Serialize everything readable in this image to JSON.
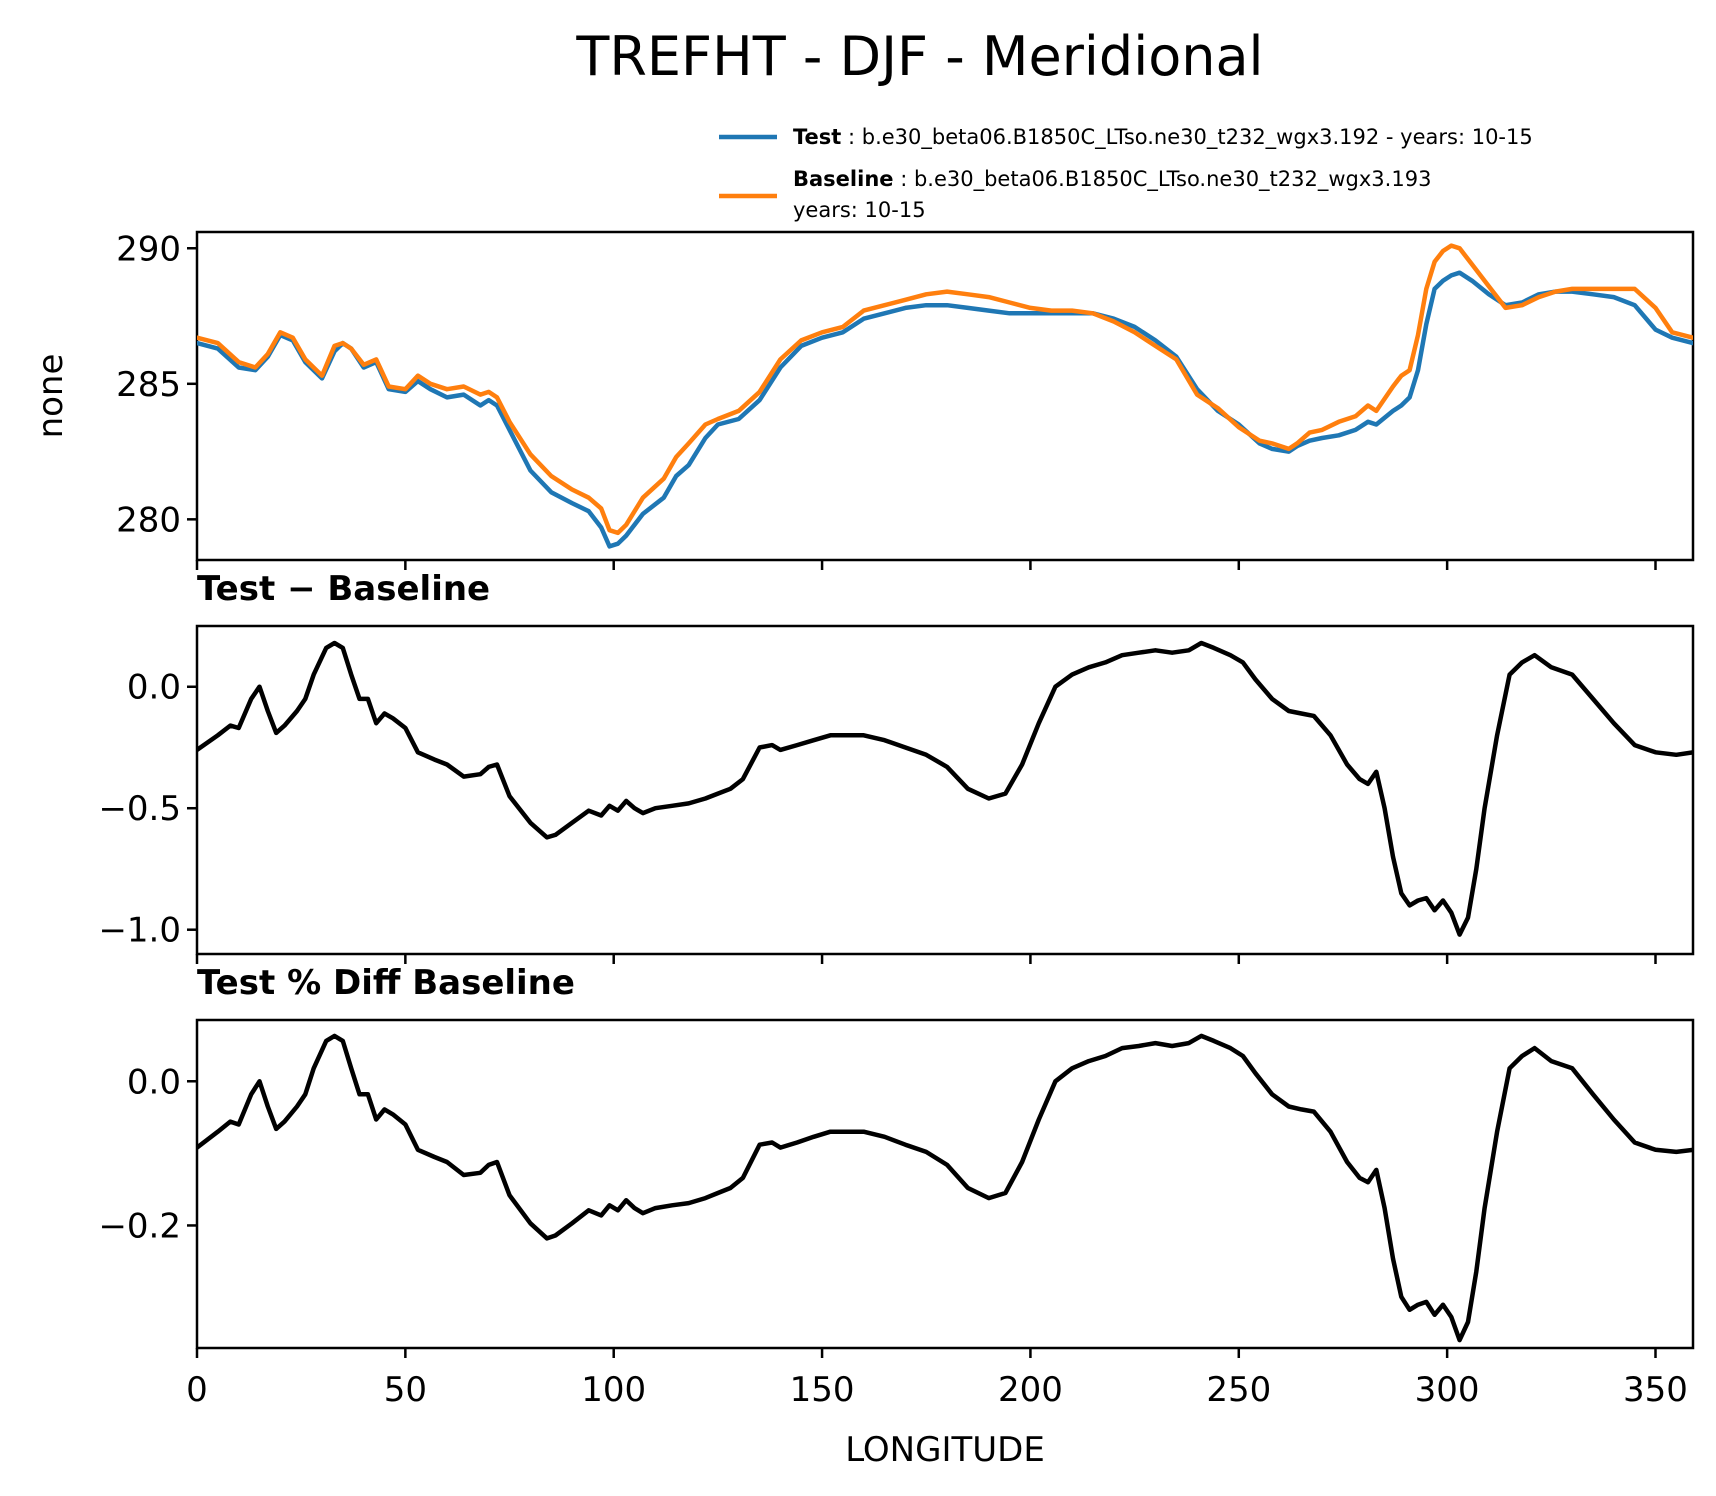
{
  "chart_data": [
    {
      "type": "line",
      "panel": "top",
      "title": "TREFHT - DJF - Meridional",
      "xlabel": "",
      "ylabel": "none",
      "xlim": [
        0,
        359
      ],
      "ylim": [
        278.5,
        290.6
      ],
      "yticks": [
        {
          "v": 280,
          "label": "280"
        },
        {
          "v": 285,
          "label": "285"
        },
        {
          "v": 290,
          "label": "290"
        }
      ],
      "legend_position": "top-right",
      "x": [
        0,
        5,
        10,
        14,
        17,
        20,
        23,
        26,
        30,
        33,
        35,
        37,
        40,
        43,
        46,
        50,
        53,
        56,
        60,
        64,
        68,
        70,
        72,
        75,
        80,
        85,
        90,
        94,
        97,
        99,
        101,
        103,
        107,
        112,
        115,
        118,
        122,
        125,
        130,
        135,
        140,
        145,
        150,
        155,
        160,
        165,
        170,
        175,
        180,
        185,
        190,
        195,
        200,
        205,
        210,
        215,
        220,
        225,
        230,
        235,
        240,
        245,
        250,
        255,
        258,
        262,
        264,
        267,
        270,
        274,
        278,
        281,
        283,
        287,
        289,
        291,
        293,
        295,
        297,
        299,
        301,
        303,
        306,
        310,
        314,
        318,
        322,
        326,
        330,
        335,
        340,
        345,
        350,
        354,
        359
      ],
      "series": [
        {
          "name": "Test",
          "label_bold": "Test",
          "label_rest": " : b.e30_beta06.B1850C_LTso.ne30_t232_wgx3.192 - years: 10-15",
          "color": "#1f77b4",
          "values": [
            286.5,
            286.3,
            285.6,
            285.5,
            286.0,
            286.8,
            286.6,
            285.8,
            285.2,
            286.2,
            286.5,
            286.3,
            285.6,
            285.8,
            284.8,
            284.7,
            285.1,
            284.8,
            284.5,
            284.6,
            284.2,
            284.4,
            284.2,
            283.3,
            281.8,
            281.0,
            280.6,
            280.3,
            279.7,
            279.0,
            279.1,
            279.4,
            280.2,
            280.8,
            281.6,
            282.0,
            283.0,
            283.5,
            283.7,
            284.4,
            285.6,
            286.4,
            286.7,
            286.9,
            287.4,
            287.6,
            287.8,
            287.9,
            287.9,
            287.8,
            287.7,
            287.6,
            287.6,
            287.6,
            287.6,
            287.6,
            287.4,
            287.1,
            286.6,
            286.0,
            284.8,
            284.0,
            283.5,
            282.8,
            282.6,
            282.5,
            282.7,
            282.9,
            283.0,
            283.1,
            283.3,
            283.6,
            283.5,
            284.0,
            284.2,
            284.5,
            285.5,
            287.2,
            288.5,
            288.8,
            289.0,
            289.1,
            288.8,
            288.3,
            287.9,
            288.0,
            288.3,
            288.4,
            288.4,
            288.3,
            288.2,
            287.9,
            287.0,
            286.7,
            286.5
          ]
        },
        {
          "name": "Baseline",
          "label_bold": "Baseline",
          "label_rest": " : b.e30_beta06.B1850C_LTso.ne30_t232_wgx3.193",
          "label_line2": "years: 10-15",
          "color": "#ff7f0e",
          "values": [
            286.7,
            286.5,
            285.8,
            285.6,
            286.1,
            286.9,
            286.7,
            285.9,
            285.3,
            286.4,
            286.5,
            286.3,
            285.7,
            285.9,
            284.9,
            284.8,
            285.3,
            285.0,
            284.8,
            284.9,
            284.6,
            284.7,
            284.5,
            283.6,
            282.4,
            281.6,
            281.1,
            280.8,
            280.4,
            279.6,
            279.5,
            279.8,
            280.8,
            281.5,
            282.3,
            282.8,
            283.5,
            283.7,
            284.0,
            284.7,
            285.9,
            286.6,
            286.9,
            287.1,
            287.7,
            287.9,
            288.1,
            288.3,
            288.4,
            288.3,
            288.2,
            288.0,
            287.8,
            287.7,
            287.7,
            287.6,
            287.3,
            286.9,
            286.4,
            285.9,
            284.6,
            284.1,
            283.4,
            282.9,
            282.8,
            282.6,
            282.8,
            283.2,
            283.3,
            283.6,
            283.8,
            284.2,
            284.0,
            284.9,
            285.3,
            285.5,
            286.8,
            288.5,
            289.5,
            289.9,
            290.1,
            290.0,
            289.4,
            288.6,
            287.8,
            287.9,
            288.2,
            288.4,
            288.5,
            288.5,
            288.5,
            288.5,
            287.8,
            286.9,
            286.7
          ]
        }
      ]
    },
    {
      "type": "line",
      "panel": "middle",
      "title": "Test − Baseline",
      "xlabel": "",
      "ylabel": "",
      "xlim": [
        0,
        359
      ],
      "ylim": [
        -1.1,
        0.25
      ],
      "yticks": [
        {
          "v": 0,
          "label": "0.0"
        },
        {
          "v": -0.5,
          "label": "−0.5"
        },
        {
          "v": -1.0,
          "label": "−1.0"
        }
      ],
      "x": [
        0,
        5,
        8,
        10,
        13,
        15,
        17,
        19,
        21,
        24,
        26,
        28,
        31,
        33,
        35,
        37,
        39,
        41,
        43,
        45,
        47,
        50,
        53,
        57,
        60,
        64,
        68,
        70,
        72,
        75,
        80,
        84,
        86,
        90,
        94,
        97,
        99,
        101,
        103,
        105,
        107,
        110,
        114,
        118,
        122,
        125,
        128,
        131,
        135,
        138,
        140,
        144,
        148,
        152,
        156,
        160,
        165,
        170,
        175,
        180,
        185,
        190,
        194,
        198,
        202,
        206,
        210,
        214,
        218,
        222,
        226,
        230,
        234,
        238,
        241,
        244,
        248,
        251,
        254,
        258,
        262,
        265,
        268,
        272,
        276,
        279,
        281,
        283,
        285,
        287,
        289,
        291,
        293,
        295,
        297,
        299,
        301,
        303,
        305,
        307,
        309,
        312,
        315,
        318,
        321,
        325,
        330,
        335,
        340,
        345,
        350,
        355,
        359
      ],
      "series": [
        {
          "name": "Test − Baseline",
          "color": "#000000",
          "values": [
            -0.26,
            -0.2,
            -0.16,
            -0.17,
            -0.05,
            0.0,
            -0.1,
            -0.19,
            -0.16,
            -0.1,
            -0.05,
            0.05,
            0.16,
            0.18,
            0.16,
            0.05,
            -0.05,
            -0.05,
            -0.15,
            -0.11,
            -0.13,
            -0.17,
            -0.27,
            -0.3,
            -0.32,
            -0.37,
            -0.36,
            -0.33,
            -0.32,
            -0.45,
            -0.56,
            -0.62,
            -0.61,
            -0.56,
            -0.51,
            -0.53,
            -0.49,
            -0.51,
            -0.47,
            -0.5,
            -0.52,
            -0.5,
            -0.49,
            -0.48,
            -0.46,
            -0.44,
            -0.42,
            -0.38,
            -0.25,
            -0.24,
            -0.26,
            -0.24,
            -0.22,
            -0.2,
            -0.2,
            -0.2,
            -0.22,
            -0.25,
            -0.28,
            -0.33,
            -0.42,
            -0.46,
            -0.44,
            -0.32,
            -0.15,
            0.0,
            0.05,
            0.08,
            0.1,
            0.13,
            0.14,
            0.15,
            0.14,
            0.15,
            0.18,
            0.16,
            0.13,
            0.1,
            0.03,
            -0.05,
            -0.1,
            -0.11,
            -0.12,
            -0.2,
            -0.32,
            -0.38,
            -0.4,
            -0.35,
            -0.5,
            -0.7,
            -0.85,
            -0.9,
            -0.88,
            -0.87,
            -0.92,
            -0.88,
            -0.93,
            -1.02,
            -0.95,
            -0.75,
            -0.5,
            -0.2,
            0.05,
            0.1,
            0.13,
            0.08,
            0.05,
            -0.05,
            -0.15,
            -0.24,
            -0.27,
            -0.28,
            -0.27
          ]
        }
      ]
    },
    {
      "type": "line",
      "panel": "bottom",
      "title": "Test % Diff Baseline",
      "xlabel": "LONGITUDE",
      "ylabel": "",
      "xlim": [
        0,
        359
      ],
      "ylim": [
        -0.37,
        0.085
      ],
      "yticks": [
        {
          "v": 0,
          "label": "0.0"
        },
        {
          "v": -0.2,
          "label": "−0.2"
        }
      ],
      "xticks": [
        {
          "v": 0,
          "label": "0"
        },
        {
          "v": 50,
          "label": "50"
        },
        {
          "v": 100,
          "label": "100"
        },
        {
          "v": 150,
          "label": "150"
        },
        {
          "v": 200,
          "label": "200"
        },
        {
          "v": 250,
          "label": "250"
        },
        {
          "v": 300,
          "label": "300"
        },
        {
          "v": 350,
          "label": "350"
        }
      ],
      "x": [
        0,
        5,
        8,
        10,
        13,
        15,
        17,
        19,
        21,
        24,
        26,
        28,
        31,
        33,
        35,
        37,
        39,
        41,
        43,
        45,
        47,
        50,
        53,
        57,
        60,
        64,
        68,
        70,
        72,
        75,
        80,
        84,
        86,
        90,
        94,
        97,
        99,
        101,
        103,
        105,
        107,
        110,
        114,
        118,
        122,
        125,
        128,
        131,
        135,
        138,
        140,
        144,
        148,
        152,
        156,
        160,
        165,
        170,
        175,
        180,
        185,
        190,
        194,
        198,
        202,
        206,
        210,
        214,
        218,
        222,
        226,
        230,
        234,
        238,
        241,
        244,
        248,
        251,
        254,
        258,
        262,
        265,
        268,
        272,
        276,
        279,
        281,
        283,
        285,
        287,
        289,
        291,
        293,
        295,
        297,
        299,
        301,
        303,
        305,
        307,
        309,
        312,
        315,
        318,
        321,
        325,
        330,
        335,
        340,
        345,
        350,
        355,
        359
      ],
      "series": [
        {
          "name": "Test % Diff Baseline",
          "color": "#000000",
          "values": [
            -0.092,
            -0.07,
            -0.056,
            -0.06,
            -0.018,
            0.0,
            -0.035,
            -0.066,
            -0.056,
            -0.035,
            -0.018,
            0.018,
            0.056,
            0.063,
            0.056,
            0.018,
            -0.018,
            -0.018,
            -0.053,
            -0.039,
            -0.046,
            -0.06,
            -0.095,
            -0.105,
            -0.112,
            -0.13,
            -0.127,
            -0.116,
            -0.112,
            -0.158,
            -0.197,
            -0.218,
            -0.214,
            -0.197,
            -0.179,
            -0.186,
            -0.172,
            -0.179,
            -0.165,
            -0.176,
            -0.183,
            -0.176,
            -0.172,
            -0.169,
            -0.162,
            -0.155,
            -0.148,
            -0.134,
            -0.088,
            -0.085,
            -0.092,
            -0.085,
            -0.077,
            -0.07,
            -0.07,
            -0.07,
            -0.077,
            -0.088,
            -0.098,
            -0.116,
            -0.148,
            -0.162,
            -0.155,
            -0.112,
            -0.053,
            0.0,
            0.018,
            0.028,
            0.035,
            0.046,
            0.049,
            0.053,
            0.049,
            0.053,
            0.063,
            0.056,
            0.046,
            0.035,
            0.011,
            -0.018,
            -0.035,
            -0.039,
            -0.042,
            -0.07,
            -0.112,
            -0.134,
            -0.14,
            -0.123,
            -0.176,
            -0.246,
            -0.299,
            -0.317,
            -0.31,
            -0.306,
            -0.324,
            -0.31,
            -0.327,
            -0.359,
            -0.334,
            -0.264,
            -0.176,
            -0.07,
            0.018,
            0.035,
            0.046,
            0.028,
            0.018,
            -0.018,
            -0.053,
            -0.085,
            -0.095,
            -0.098,
            -0.095
          ]
        }
      ]
    }
  ]
}
